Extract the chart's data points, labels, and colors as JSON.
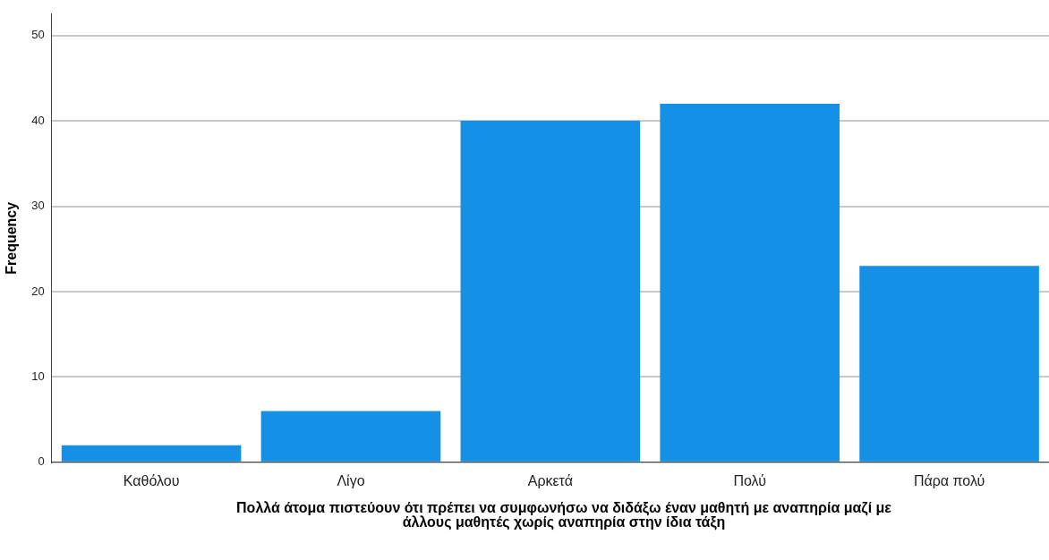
{
  "chart_data": {
    "type": "bar",
    "categories": [
      "Καθόλου",
      "Λίγο",
      "Αρκετά",
      "Πολύ",
      "Πάρα πολύ"
    ],
    "values": [
      2,
      6,
      40,
      42,
      23
    ],
    "color": "#1490e6",
    "ylim": [
      0,
      52.5
    ],
    "yticks": [
      0,
      10,
      20,
      30,
      40,
      50
    ],
    "ylabel": "Frequency",
    "xlabel": "Πολλά άτομα πιστεύουν ότι πρέπει να συμφωνήσω να διδάξω έναν μαθητή με αναπηρία μαζί με άλλους μαθητές χωρίς αναπηρία στην ίδια τάξη",
    "grid": "y"
  }
}
